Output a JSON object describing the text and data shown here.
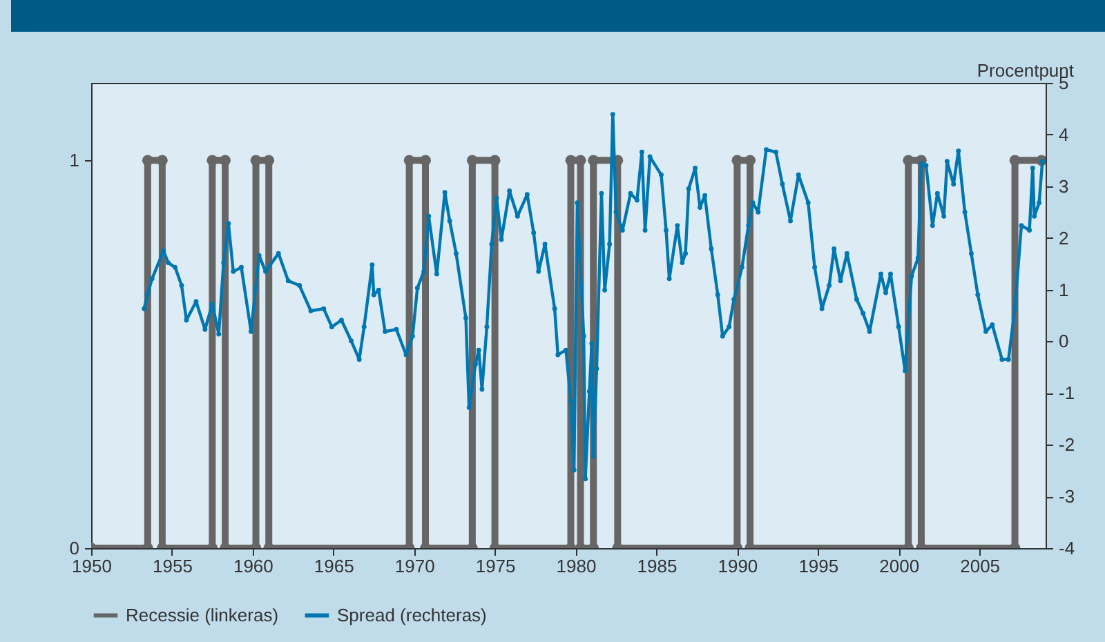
{
  "chart_data": {
    "type": "line",
    "y2label": "Procentpunt",
    "xlim": [
      1950,
      2009.1
    ],
    "xticks": [
      1950,
      1955,
      1960,
      1965,
      1970,
      1975,
      1980,
      1985,
      1990,
      1995,
      2000,
      2005
    ],
    "ylim": [
      0,
      1.2
    ],
    "yticks": [
      0,
      1
    ],
    "y2lim": [
      -4,
      5
    ],
    "y2ticks": [
      -4,
      -3,
      -2,
      -1,
      0,
      1,
      2,
      3,
      4,
      5
    ],
    "legend": "bottom",
    "marker": "circle",
    "line_style": "solid",
    "grid": false,
    "series": [
      {
        "name": "Recessie (linkeras)",
        "color": "#666666",
        "axis": "y",
        "x": [
          1950,
          1953.5,
          1953.5,
          1954.4,
          1954.4,
          1957.5,
          1957.5,
          1958.3,
          1958.3,
          1960.2,
          1960.2,
          1961.0,
          1961.0,
          1969.7,
          1969.7,
          1970.7,
          1970.7,
          1973.6,
          1973.6,
          1975.0,
          1975.0,
          1979.7,
          1979.7,
          1980.3,
          1980.3,
          1981.1,
          1981.1,
          1982.6,
          1982.6,
          1990.0,
          1990.0,
          1990.8,
          1990.8,
          2000.6,
          2000.6,
          2001.4,
          2001.4,
          2007.2,
          2007.2,
          2008.85
        ],
        "values": [
          0,
          0,
          1,
          1,
          0,
          0,
          1,
          1,
          0,
          0,
          1,
          1,
          0,
          0,
          1,
          1,
          0,
          0,
          1,
          1,
          0,
          0,
          1,
          1,
          0,
          0,
          1,
          1,
          0,
          0,
          1,
          1,
          0,
          0,
          1,
          1,
          0,
          0,
          1,
          1
        ]
      },
      {
        "name": "Spread (rechteras)",
        "color": "#0077b0",
        "axis": "y2",
        "x": [
          1953.28,
          1953.48,
          1953.77,
          1954.48,
          1954.77,
          1955.2,
          1955.6,
          1955.9,
          1956.5,
          1957.05,
          1957.5,
          1957.9,
          1958.2,
          1958.5,
          1958.8,
          1959.3,
          1959.9,
          1960.4,
          1960.8,
          1961.6,
          1962.2,
          1962.9,
          1963.6,
          1964.4,
          1964.9,
          1965.5,
          1966.1,
          1966.6,
          1966.9,
          1967.4,
          1967.5,
          1967.8,
          1968.2,
          1968.9,
          1969.5,
          1969.9,
          1970.2,
          1970.6,
          1970.9,
          1971.4,
          1971.9,
          1972.2,
          1972.6,
          1973.2,
          1973.4,
          1973.8,
          1974.0,
          1974.2,
          1974.5,
          1974.8,
          1975.1,
          1975.4,
          1975.9,
          1976.4,
          1977.0,
          1977.4,
          1977.7,
          1978.1,
          1978.7,
          1978.9,
          1979.4,
          1979.7,
          1979.9,
          1980.1,
          1980.5,
          1980.6,
          1980.85,
          1981.0,
          1981.1,
          1981.3,
          1981.6,
          1981.8,
          1982.1,
          1982.3,
          1982.5,
          1982.9,
          1983.4,
          1983.8,
          1984.1,
          1984.3,
          1984.6,
          1985.3,
          1985.6,
          1985.8,
          1986.3,
          1986.6,
          1986.8,
          1987.0,
          1987.4,
          1987.7,
          1988.0,
          1988.4,
          1988.8,
          1989.1,
          1989.5,
          1989.8,
          1990.3,
          1990.7,
          1990.97,
          1991.3,
          1991.8,
          1992.4,
          1992.8,
          1993.3,
          1993.8,
          1994.4,
          1994.8,
          1995.25,
          1995.7,
          1996.0,
          1996.4,
          1996.8,
          1997.4,
          1997.8,
          1998.2,
          1998.9,
          1999.2,
          1999.5,
          2000.0,
          2000.4,
          2000.8,
          2001.2,
          2001.4,
          2001.7,
          2002.1,
          2002.4,
          2002.8,
          2003.0,
          2003.4,
          2003.7,
          2004.1,
          2004.5,
          2004.9,
          2005.4,
          2005.8,
          2006.4,
          2006.8,
          2007.2,
          2007.6,
          2008.1,
          2008.3,
          2008.4,
          2008.7,
          2008.9
        ],
        "values": [
          0.63,
          0.9,
          1.21,
          1.75,
          1.52,
          1.43,
          1.08,
          0.41,
          0.77,
          0.23,
          0.72,
          0.14,
          1.52,
          2.28,
          1.35,
          1.43,
          0.19,
          1.66,
          1.35,
          1.7,
          1.17,
          1.08,
          0.59,
          0.63,
          0.28,
          0.41,
          0.01,
          -0.35,
          0.28,
          1.48,
          0.9,
          0.99,
          0.19,
          0.23,
          -0.26,
          0.1,
          1.03,
          1.35,
          2.42,
          1.3,
          2.88,
          2.33,
          1.7,
          0.45,
          -1.28,
          -0.44,
          -0.17,
          -0.93,
          0.28,
          1.88,
          2.77,
          1.97,
          2.91,
          2.42,
          2.84,
          2.1,
          1.35,
          1.88,
          0.63,
          -0.26,
          -0.17,
          -1.15,
          -2.49,
          2.68,
          0.1,
          -2.66,
          -0.97,
          -0.04,
          -2.22,
          -0.53,
          2.86,
          0.99,
          1.88,
          4.39,
          2.5,
          2.15,
          2.86,
          2.73,
          3.66,
          2.15,
          3.57,
          3.22,
          2.15,
          1.21,
          2.24,
          1.52,
          1.7,
          2.95,
          3.35,
          2.59,
          2.82,
          1.79,
          0.9,
          0.1,
          0.28,
          0.81,
          1.43,
          2.24,
          2.68,
          2.5,
          3.71,
          3.66,
          3.04,
          2.33,
          3.22,
          2.68,
          1.43,
          0.63,
          1.08,
          1.79,
          1.17,
          1.7,
          0.81,
          0.54,
          0.19,
          1.3,
          0.94,
          1.3,
          0.28,
          -0.57,
          1.26,
          1.61,
          3.44,
          3.4,
          2.24,
          2.86,
          2.42,
          3.48,
          3.04,
          3.68,
          2.5,
          1.7,
          0.9,
          0.19,
          0.32,
          -0.35,
          -0.35,
          0.63,
          2.24,
          2.15,
          3.35,
          2.42,
          2.68,
          3.48
        ]
      }
    ]
  }
}
